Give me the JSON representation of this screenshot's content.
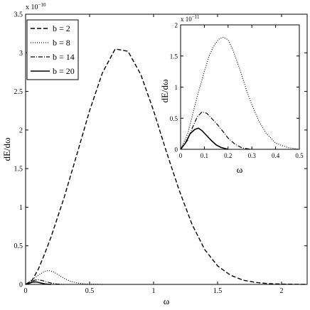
{
  "chart_data": [
    {
      "type": "line",
      "id": "main",
      "xlabel": "ω",
      "ylabel": "dE/dω",
      "y_exponent_label": "x 10",
      "y_exponent_power": "−10",
      "xlim": [
        0,
        2.2
      ],
      "ylim": [
        0,
        3.5
      ],
      "x_ticks": [
        0,
        0.5,
        1,
        1.5,
        2
      ],
      "x_tick_labels": [
        "0",
        "0.5",
        "1",
        "1.5",
        "2"
      ],
      "y_ticks": [
        0,
        0.5,
        1,
        1.5,
        2,
        2.5,
        3,
        3.5
      ],
      "y_tick_labels": [
        "0",
        "0.5",
        "1",
        "1.5",
        "2",
        "2.5",
        "3",
        "3.5"
      ],
      "grid": false,
      "legend_position": "top-left",
      "series": [
        {
          "name": "b = 2",
          "style": "dashed",
          "x": [
            0,
            0.05,
            0.1,
            0.15,
            0.2,
            0.3,
            0.4,
            0.5,
            0.6,
            0.7,
            0.8,
            0.9,
            1.0,
            1.1,
            1.2,
            1.3,
            1.4,
            1.5,
            1.6,
            1.7,
            1.8,
            1.9,
            2.0,
            2.2
          ],
          "y": [
            0,
            0.05,
            0.2,
            0.4,
            0.62,
            1.12,
            1.68,
            2.25,
            2.74,
            3.05,
            3.02,
            2.72,
            2.25,
            1.72,
            1.22,
            0.78,
            0.45,
            0.24,
            0.12,
            0.055,
            0.025,
            0.01,
            0.004,
            0
          ]
        },
        {
          "name": "b = 8",
          "style": "dotted",
          "x": [
            0,
            0.05,
            0.1,
            0.15,
            0.18,
            0.22,
            0.26,
            0.3,
            0.35,
            0.4,
            0.45,
            0.5,
            0.6
          ],
          "y": [
            0,
            0.06,
            0.12,
            0.17,
            0.18,
            0.16,
            0.12,
            0.08,
            0.04,
            0.02,
            0.008,
            0.003,
            0
          ]
        },
        {
          "name": "b = 14",
          "style": "dashdot",
          "x": [
            0,
            0.04,
            0.07,
            0.1,
            0.13,
            0.16,
            0.2,
            0.24,
            0.28,
            0.3
          ],
          "y": [
            0,
            0.03,
            0.055,
            0.06,
            0.05,
            0.035,
            0.018,
            0.006,
            0.001,
            0
          ]
        },
        {
          "name": "b = 20",
          "style": "solid",
          "x": [
            0,
            0.03,
            0.05,
            0.07,
            0.09,
            0.11,
            0.13,
            0.15,
            0.18,
            0.2
          ],
          "y": [
            0,
            0.015,
            0.028,
            0.033,
            0.03,
            0.022,
            0.014,
            0.007,
            0.002,
            0
          ]
        }
      ]
    },
    {
      "type": "line",
      "id": "inset",
      "xlabel": "ω",
      "ylabel": "dE/dω",
      "y_exponent_label": "x 10",
      "y_exponent_power": "−11",
      "xlim": [
        0,
        0.5
      ],
      "ylim": [
        0,
        2.0
      ],
      "x_ticks": [
        0,
        0.1,
        0.2,
        0.3,
        0.4,
        0.5
      ],
      "x_tick_labels": [
        "0",
        "0.1",
        "0.2",
        "0.3",
        "0.4",
        "0.5"
      ],
      "y_ticks": [
        0,
        0.5,
        1,
        1.5,
        2
      ],
      "y_tick_labels": [
        "0",
        "0.5",
        "1",
        "1.5",
        "2"
      ],
      "grid": false,
      "series": [
        {
          "style": "dotted",
          "x": [
            0,
            0.03,
            0.05,
            0.07,
            0.1,
            0.12,
            0.14,
            0.16,
            0.18,
            0.2,
            0.22,
            0.25,
            0.28,
            0.3,
            0.33,
            0.36,
            0.4,
            0.45,
            0.5
          ],
          "y": [
            0,
            0.25,
            0.55,
            0.85,
            1.25,
            1.5,
            1.66,
            1.77,
            1.8,
            1.76,
            1.6,
            1.28,
            0.92,
            0.72,
            0.45,
            0.26,
            0.1,
            0.03,
            0
          ]
        },
        {
          "style": "dashdot",
          "x": [
            0,
            0.03,
            0.05,
            0.07,
            0.09,
            0.11,
            0.13,
            0.15,
            0.18,
            0.2,
            0.23,
            0.26,
            0.3
          ],
          "y": [
            0,
            0.15,
            0.35,
            0.52,
            0.6,
            0.58,
            0.5,
            0.42,
            0.28,
            0.18,
            0.08,
            0.02,
            0
          ]
        },
        {
          "style": "solid",
          "x": [
            0,
            0.02,
            0.04,
            0.06,
            0.075,
            0.09,
            0.11,
            0.13,
            0.15,
            0.17,
            0.19,
            0.2
          ],
          "y": [
            0,
            0.1,
            0.25,
            0.32,
            0.34,
            0.3,
            0.22,
            0.14,
            0.07,
            0.03,
            0.01,
            0
          ]
        }
      ]
    }
  ]
}
